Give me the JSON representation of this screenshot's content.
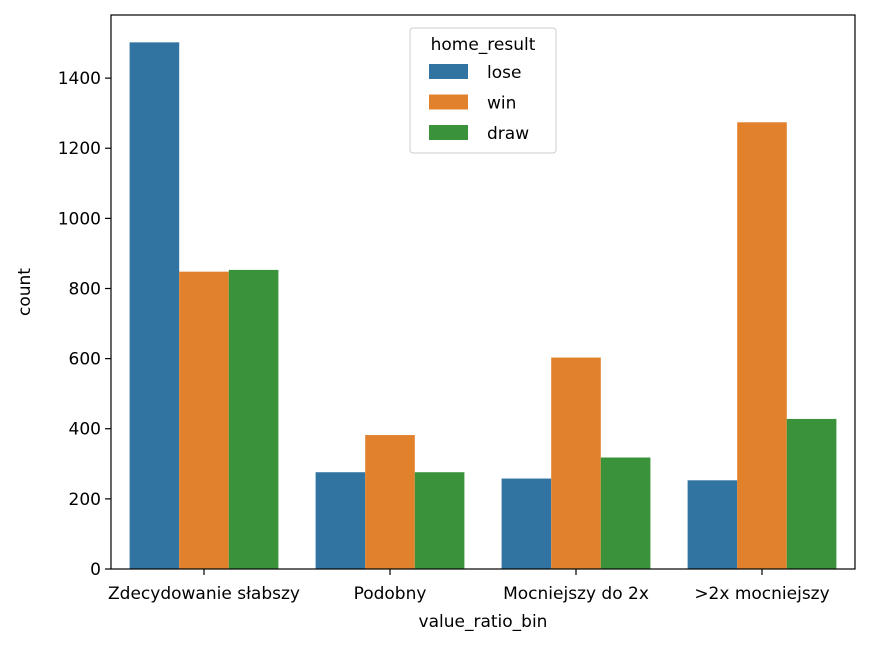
{
  "chart_data": {
    "type": "bar",
    "title": "",
    "xlabel": "value_ratio_bin",
    "ylabel": "count",
    "categories": [
      "Zdecydowanie słabszy",
      "Podobny",
      "Mocniejszy do 2x",
      ">2x mocniejszy"
    ],
    "series": [
      {
        "name": "lose",
        "color": "#3274a1",
        "values": [
          1502,
          276,
          258,
          253
        ]
      },
      {
        "name": "win",
        "color": "#e1812c",
        "values": [
          848,
          382,
          603,
          1274
        ]
      },
      {
        "name": "draw",
        "color": "#3a923a",
        "values": [
          853,
          276,
          318,
          428
        ]
      }
    ],
    "ylim": [
      0,
      1580
    ],
    "yticks": [
      0,
      200,
      400,
      600,
      800,
      1000,
      1200,
      1400
    ],
    "legend": {
      "title": "home_result",
      "placement": "top-center"
    },
    "grid": false
  }
}
